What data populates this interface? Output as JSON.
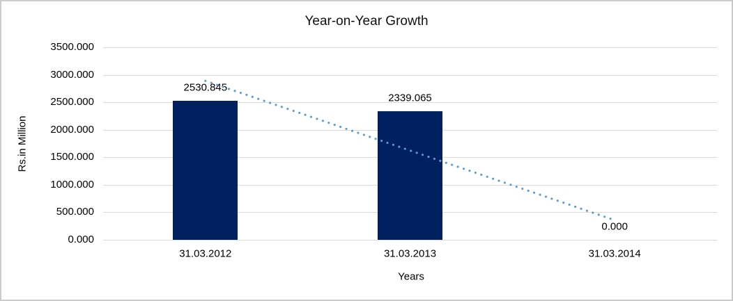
{
  "chart_data": {
    "type": "bar",
    "title": "Year-on-Year Growth",
    "xlabel": "Years",
    "ylabel": "Rs.in Million",
    "categories": [
      "31.03.2012",
      "31.03.2013",
      "31.03.2014"
    ],
    "values": [
      2530.845,
      2339.065,
      0.0
    ],
    "data_labels": [
      "2530.845",
      "2339.065",
      "0.000"
    ],
    "y_tick_labels": [
      "0.000",
      "500.000",
      "1000.000",
      "1500.000",
      "2000.000",
      "2500.000",
      "3000.000",
      "3500.000"
    ],
    "y_tick_values": [
      0,
      500,
      1000,
      1500,
      2000,
      2500,
      3000,
      3500
    ],
    "ylim": [
      0,
      3500
    ],
    "grid": true,
    "legend": "none",
    "bar_color": "#002060",
    "gridline_color": "#d9d9d9",
    "trendline": {
      "type": "linear",
      "style": "dotted",
      "color": "#5b9bd5",
      "start_value": 2888.7,
      "end_value": 357.9
    }
  }
}
